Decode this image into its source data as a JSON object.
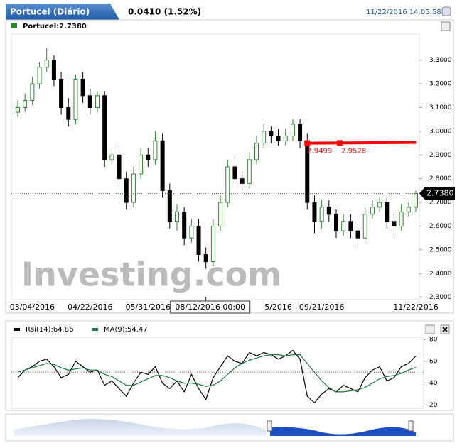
{
  "header": {
    "title": "Portucel (Diário)",
    "change": "0.0410 (1.52%)",
    "timestamp": "11/22/2016 14:05:58"
  },
  "watermark": "Investing.com",
  "chart_data": [
    {
      "type": "candlestick",
      "legend": "Portucel:2.7380",
      "categories": [
        null,
        null,
        "03/04/2016",
        null,
        null,
        null,
        null,
        null,
        null,
        null,
        "04/22/2016",
        null,
        null,
        null,
        null,
        null,
        null,
        null,
        "05/31/2016",
        null,
        null,
        null,
        null,
        null,
        null,
        null,
        "08/12/2016 00:00",
        null,
        null,
        null,
        null,
        null,
        null,
        null,
        null,
        null,
        "5/2016",
        null,
        null,
        null,
        null,
        null,
        "09/21/2016",
        null,
        null,
        null,
        null,
        null,
        null,
        null,
        null,
        null,
        null,
        null,
        null,
        "11/22/2016"
      ],
      "open": [
        3.08,
        3.1,
        3.13,
        3.2,
        3.27,
        3.3,
        3.22,
        3.1,
        3.05,
        3.22,
        3.15,
        3.1,
        3.15,
        2.88,
        2.9,
        2.8,
        2.7,
        2.82,
        2.9,
        2.88,
        2.96,
        2.75,
        2.62,
        2.66,
        2.55,
        2.6,
        2.48,
        2.45,
        2.6,
        2.7,
        2.85,
        2.8,
        2.78,
        2.88,
        2.95,
        3.0,
        2.98,
        2.96,
        2.98,
        3.03,
        2.96,
        2.7,
        2.62,
        2.68,
        2.65,
        2.58,
        2.62,
        2.58,
        2.55,
        2.65,
        2.68,
        2.7,
        2.62,
        2.6,
        2.66,
        2.68
      ],
      "high": [
        3.13,
        3.16,
        3.23,
        3.29,
        3.35,
        3.32,
        3.25,
        3.14,
        3.24,
        3.25,
        3.18,
        3.17,
        3.17,
        2.93,
        2.94,
        2.83,
        2.85,
        2.93,
        2.93,
        3.0,
        2.99,
        2.78,
        2.69,
        2.68,
        2.63,
        2.63,
        2.51,
        2.63,
        2.73,
        2.88,
        2.89,
        2.83,
        2.91,
        2.98,
        3.03,
        3.02,
        3.01,
        3.01,
        3.05,
        3.05,
        2.99,
        2.73,
        2.71,
        2.71,
        2.67,
        2.65,
        2.65,
        2.61,
        2.68,
        2.71,
        2.72,
        2.72,
        2.65,
        2.69,
        2.7,
        2.75
      ],
      "low": [
        3.06,
        3.08,
        3.11,
        3.18,
        3.25,
        3.19,
        3.07,
        3.02,
        3.03,
        3.12,
        3.07,
        3.08,
        2.85,
        2.86,
        2.77,
        2.67,
        2.68,
        2.8,
        2.85,
        2.86,
        2.72,
        2.59,
        2.58,
        2.52,
        2.53,
        2.45,
        2.42,
        2.43,
        2.58,
        2.68,
        2.78,
        2.75,
        2.76,
        2.86,
        2.93,
        2.95,
        2.94,
        2.94,
        2.96,
        2.93,
        2.67,
        2.57,
        2.59,
        2.62,
        2.55,
        2.56,
        2.55,
        2.52,
        2.53,
        2.63,
        2.66,
        2.59,
        2.56,
        2.58,
        2.64,
        2.66
      ],
      "close": [
        3.1,
        3.13,
        3.2,
        3.27,
        3.3,
        3.22,
        3.1,
        3.05,
        3.22,
        3.15,
        3.1,
        3.15,
        2.88,
        2.9,
        2.8,
        2.7,
        2.82,
        2.9,
        2.88,
        2.96,
        2.75,
        2.62,
        2.66,
        2.55,
        2.6,
        2.48,
        2.45,
        2.6,
        2.7,
        2.85,
        2.8,
        2.78,
        2.88,
        2.95,
        3.0,
        2.98,
        2.96,
        2.98,
        3.03,
        2.96,
        2.7,
        2.62,
        2.68,
        2.65,
        2.58,
        2.62,
        2.58,
        2.55,
        2.65,
        2.68,
        2.7,
        2.62,
        2.6,
        2.66,
        2.68,
        2.738
      ],
      "up_color": "#2a8a2a",
      "down_color": "#000000",
      "ylim": [
        2.29,
        3.41
      ],
      "yticks": [
        {
          "value": 2.3,
          "label": "2.3000"
        },
        {
          "value": 2.4,
          "label": "2.4000"
        },
        {
          "value": 2.5,
          "label": "2.5000"
        },
        {
          "value": 2.6,
          "label": "2.6000"
        },
        {
          "value": 2.7,
          "label": "2.7000"
        },
        {
          "value": 2.8,
          "label": "2.8000"
        },
        {
          "value": 2.9,
          "label": "2.9000"
        },
        {
          "value": 3.0,
          "label": "3.0000"
        },
        {
          "value": 3.1,
          "label": "3.1000"
        },
        {
          "value": 3.2,
          "label": "3.2000"
        },
        {
          "value": 3.3,
          "label": "3.3000"
        }
      ],
      "last": {
        "value": 2.738,
        "label": "2.7380"
      },
      "trendline": {
        "start": 40,
        "end": 55,
        "values": [
          2.9499,
          2.9528
        ],
        "color": "#ff0000"
      }
    },
    {
      "type": "line",
      "series": [
        {
          "name": "Rsi(14):64.86",
          "color": "#000000",
          "values": [
            45,
            52,
            55,
            60,
            62,
            55,
            45,
            48,
            60,
            55,
            50,
            52,
            38,
            42,
            35,
            28,
            40,
            50,
            48,
            55,
            40,
            35,
            42,
            32,
            48,
            35,
            25,
            45,
            55,
            65,
            60,
            58,
            68,
            65,
            68,
            66,
            62,
            65,
            70,
            62,
            28,
            22,
            30,
            35,
            32,
            38,
            35,
            32,
            45,
            52,
            55,
            42,
            45,
            55,
            58,
            64.86
          ]
        },
        {
          "name": "MA(9):54.47",
          "color": "#1a7a3a",
          "values": [
            50,
            52,
            54,
            56,
            58,
            57,
            54,
            52,
            53,
            54,
            52,
            52,
            48,
            46,
            42,
            38,
            38,
            41,
            44,
            47,
            47,
            45,
            42,
            40,
            40,
            39,
            37,
            38,
            42,
            48,
            54,
            58,
            61,
            63,
            65,
            66,
            66,
            65,
            66,
            66,
            58,
            50,
            42,
            36,
            32,
            32,
            33,
            34,
            36,
            40,
            44,
            46,
            47,
            49,
            52,
            54.47
          ]
        }
      ],
      "level": 50,
      "ylim": [
        17,
        82
      ],
      "yticks": [
        20,
        40,
        60,
        80
      ]
    }
  ]
}
